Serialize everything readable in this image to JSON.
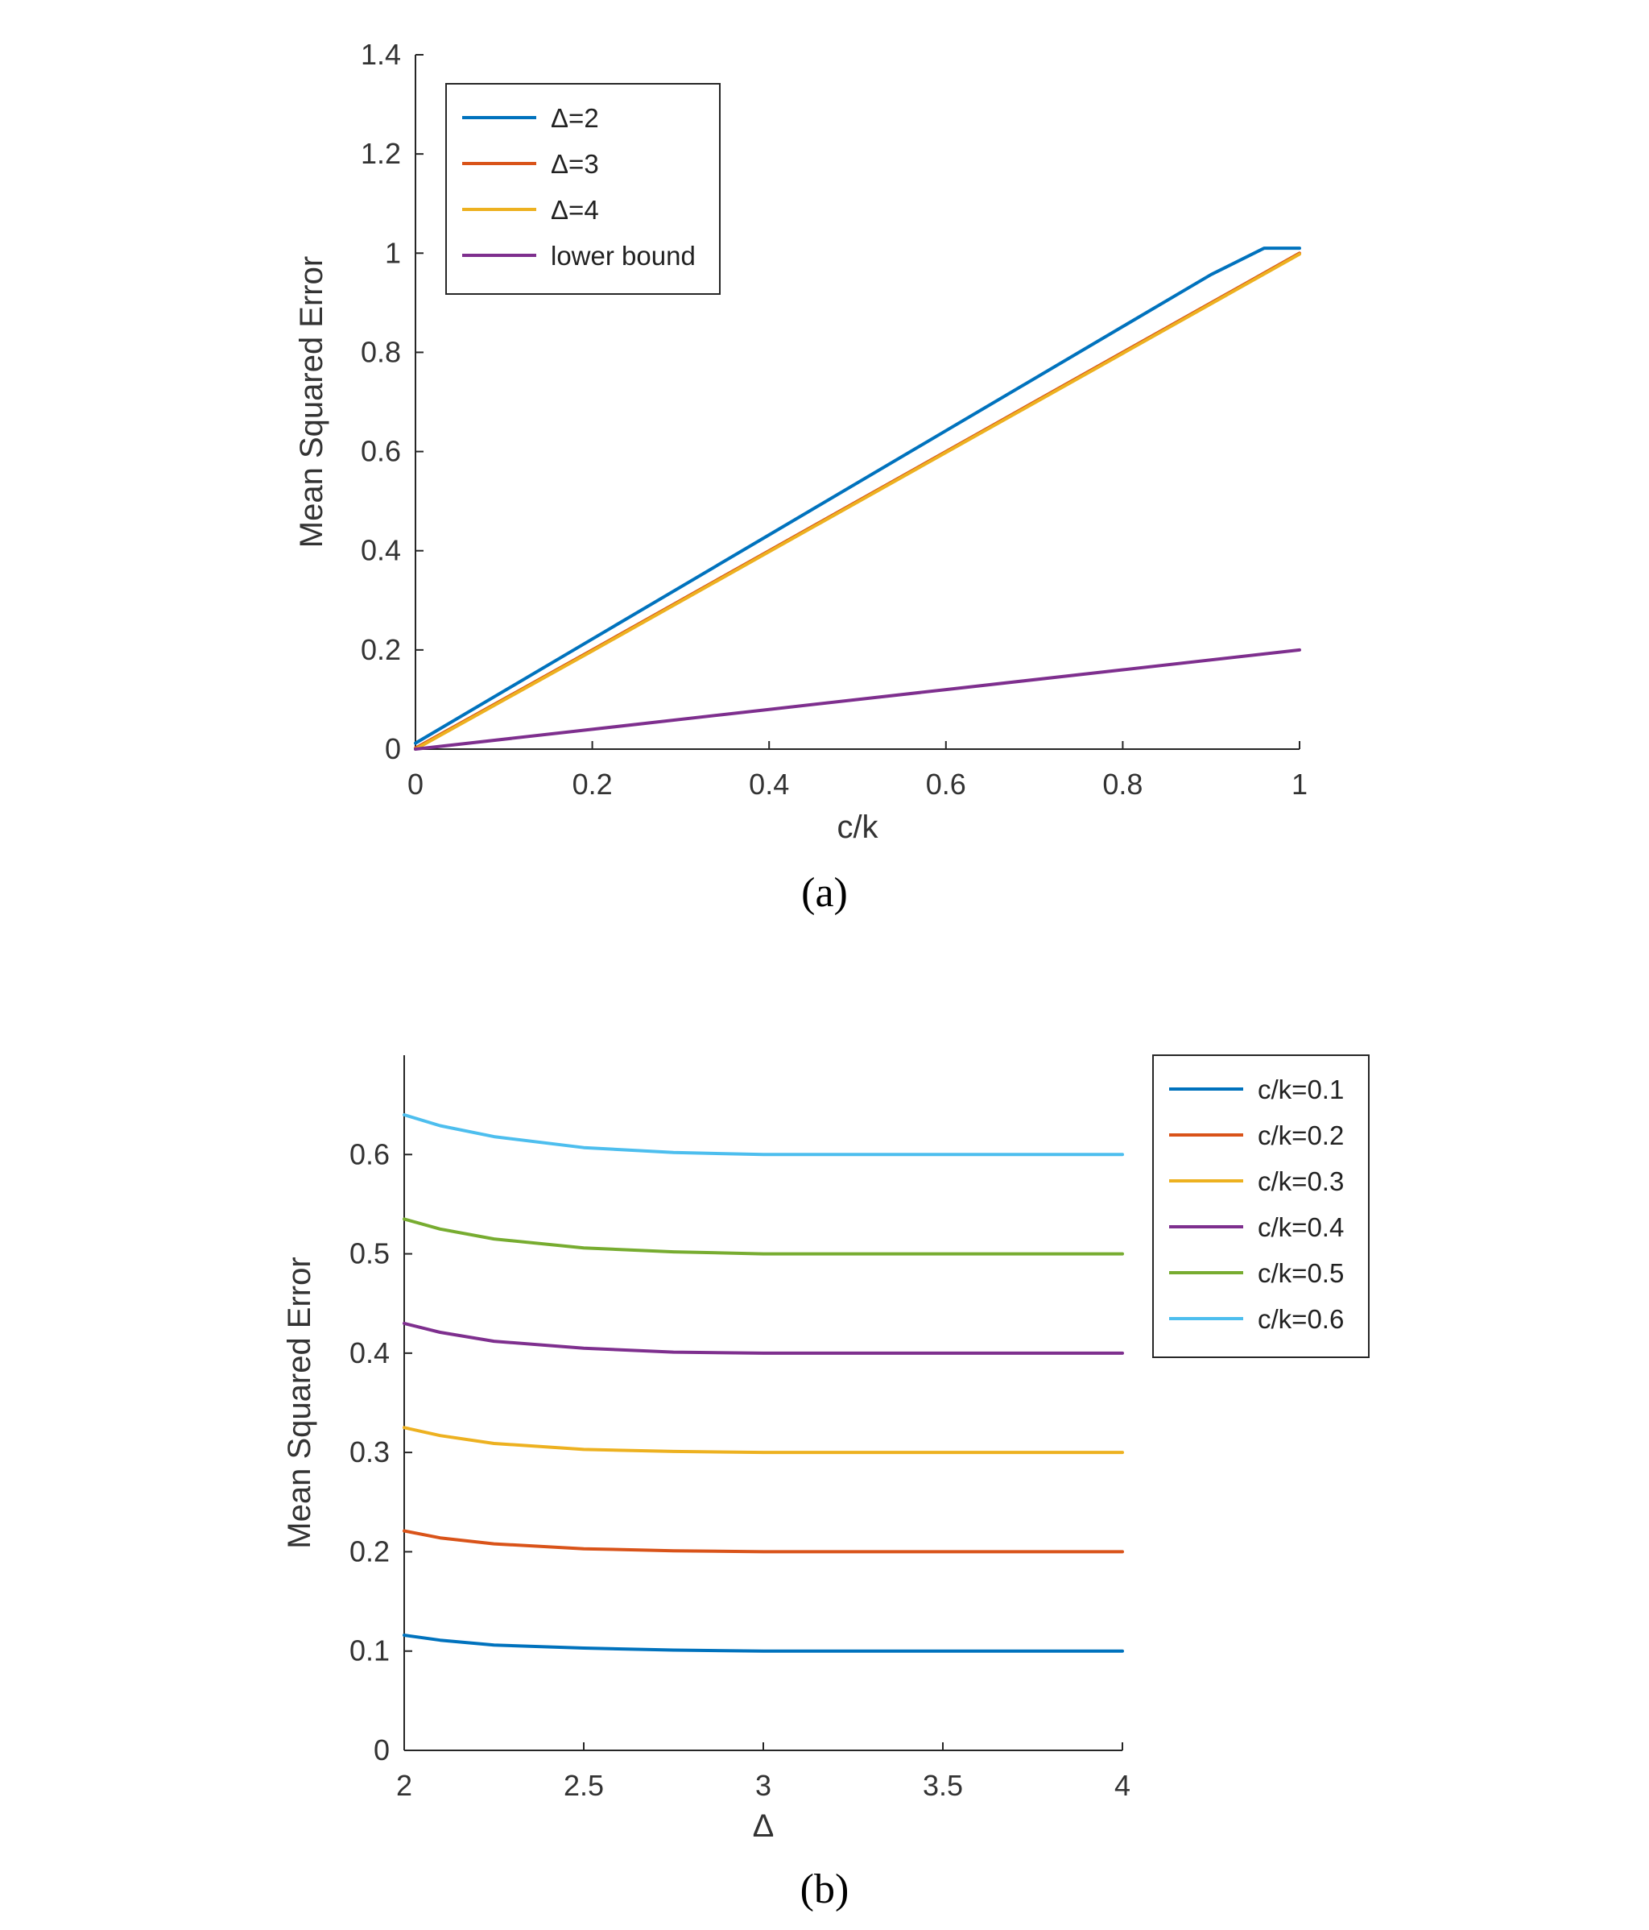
{
  "chart_data": [
    {
      "type": "line",
      "caption": "(a)",
      "xlabel": "c/k",
      "ylabel": "Mean Squared Error",
      "xlim": [
        0,
        1
      ],
      "ylim": [
        0,
        1.4
      ],
      "xticks": [
        0,
        0.2,
        0.4,
        0.6,
        0.8,
        1
      ],
      "yticks": [
        0,
        0.2,
        0.4,
        0.6,
        0.8,
        1,
        1.2,
        1.4
      ],
      "xtick_labels": [
        "0",
        "0.2",
        "0.4",
        "0.6",
        "0.8",
        "1"
      ],
      "ytick_labels": [
        "0",
        "0.2",
        "0.4",
        "0.6",
        "0.8",
        "1",
        "1.2",
        "1.4"
      ],
      "legend": "top-left",
      "grid": false,
      "series": [
        {
          "name": "Δ=2",
          "color": "#0072BD",
          "x": [
            0,
            0.2,
            0.4,
            0.6,
            0.8,
            0.9,
            0.96,
            1.0
          ],
          "y": [
            0.012,
            0.222,
            0.432,
            0.642,
            0.852,
            0.957,
            1.01,
            1.01
          ]
        },
        {
          "name": "Δ=3",
          "color": "#D95319",
          "x": [
            0,
            0.2,
            0.4,
            0.6,
            0.8,
            1.0
          ],
          "y": [
            0.002,
            0.2,
            0.4,
            0.6,
            0.8,
            1.0
          ]
        },
        {
          "name": "Δ=4",
          "color": "#EDB120",
          "x": [
            0,
            0.2,
            0.4,
            0.6,
            0.8,
            1.0
          ],
          "y": [
            0.0,
            0.198,
            0.398,
            0.598,
            0.798,
            0.998
          ]
        },
        {
          "name": "lower bound",
          "color": "#7E2F8E",
          "x": [
            0,
            0.2,
            0.4,
            0.6,
            0.8,
            1.0
          ],
          "y": [
            0,
            0.04,
            0.08,
            0.12,
            0.16,
            0.2
          ]
        }
      ]
    },
    {
      "type": "line",
      "caption": "(b)",
      "xlabel": "Δ",
      "ylabel": "Mean Squared Error",
      "xlim": [
        2,
        4
      ],
      "ylim": [
        0,
        0.7
      ],
      "xticks": [
        2,
        2.5,
        3,
        3.5,
        4
      ],
      "yticks": [
        0,
        0.1,
        0.2,
        0.3,
        0.4,
        0.5,
        0.6
      ],
      "xtick_labels": [
        "2",
        "2.5",
        "3",
        "3.5",
        "4"
      ],
      "ytick_labels": [
        "0",
        "0.1",
        "0.2",
        "0.3",
        "0.4",
        "0.5",
        "0.6"
      ],
      "legend": "outside-right",
      "grid": false,
      "series": [
        {
          "name": "c/k=0.1",
          "color": "#0072BD",
          "x": [
            2,
            2.1,
            2.25,
            2.5,
            2.75,
            3,
            3.5,
            4
          ],
          "y": [
            0.116,
            0.111,
            0.106,
            0.103,
            0.101,
            0.1,
            0.1,
            0.1
          ]
        },
        {
          "name": "c/k=0.2",
          "color": "#D95319",
          "x": [
            2,
            2.1,
            2.25,
            2.5,
            2.75,
            3,
            3.5,
            4
          ],
          "y": [
            0.221,
            0.214,
            0.208,
            0.203,
            0.201,
            0.2,
            0.2,
            0.2
          ]
        },
        {
          "name": "c/k=0.3",
          "color": "#EDB120",
          "x": [
            2,
            2.1,
            2.25,
            2.5,
            2.75,
            3,
            3.5,
            4
          ],
          "y": [
            0.325,
            0.317,
            0.309,
            0.303,
            0.301,
            0.3,
            0.3,
            0.3
          ]
        },
        {
          "name": "c/k=0.4",
          "color": "#7E2F8E",
          "x": [
            2,
            2.1,
            2.25,
            2.5,
            2.75,
            3,
            3.5,
            4
          ],
          "y": [
            0.43,
            0.421,
            0.412,
            0.405,
            0.401,
            0.4,
            0.4,
            0.4
          ]
        },
        {
          "name": "c/k=0.5",
          "color": "#77AC30",
          "x": [
            2,
            2.1,
            2.25,
            2.5,
            2.75,
            3,
            3.5,
            4
          ],
          "y": [
            0.535,
            0.525,
            0.515,
            0.506,
            0.502,
            0.5,
            0.5,
            0.5
          ]
        },
        {
          "name": "c/k=0.6",
          "color": "#4DBEEE",
          "x": [
            2,
            2.1,
            2.25,
            2.5,
            2.75,
            3,
            3.5,
            4
          ],
          "y": [
            0.64,
            0.629,
            0.618,
            0.607,
            0.602,
            0.6,
            0.6,
            0.6
          ]
        }
      ]
    }
  ]
}
